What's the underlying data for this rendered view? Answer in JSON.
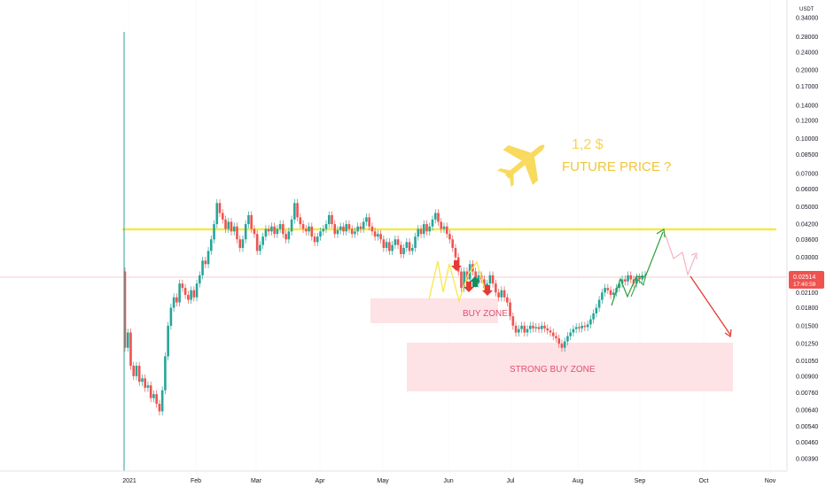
{
  "chart_data": {
    "type": "candlestick",
    "y_scale": "log",
    "currency_label": "USDT",
    "y_ticks": [
      "0.34000",
      "0.28000",
      "0.24000",
      "0.20000",
      "0.17000",
      "0.14000",
      "0.12000",
      "0.10000",
      "0.08500",
      "0.07000",
      "0.06000",
      "0.05000",
      "0.04200",
      "0.03600",
      "0.03000",
      "0.02100",
      "0.01800",
      "0.01500",
      "0.01250",
      "0.01050",
      "0.00900",
      "0.00760",
      "0.00640",
      "0.00540",
      "0.00460",
      "0.00390"
    ],
    "x_ticks": [
      "2021",
      "Feb",
      "Mar",
      "Apr",
      "May",
      "Jun",
      "Jul",
      "Aug",
      "Sep",
      "Oct",
      "Nov"
    ],
    "current_price": "0.02514",
    "countdown": "17:40:59",
    "resistance_level": 0.04,
    "ohlc_daily": [
      [
        0.026,
        0.012
      ],
      [
        0.012,
        0.014
      ],
      [
        0.014,
        0.01
      ],
      [
        0.01,
        0.009
      ],
      [
        0.009,
        0.01
      ],
      [
        0.01,
        0.0085
      ],
      [
        0.0085,
        0.0088
      ],
      [
        0.0088,
        0.008
      ],
      [
        0.008,
        0.0082
      ],
      [
        0.0082,
        0.0072
      ],
      [
        0.0072,
        0.0075
      ],
      [
        0.0075,
        0.0068
      ],
      [
        0.0068,
        0.0063
      ],
      [
        0.0063,
        0.0078
      ],
      [
        0.0078,
        0.011
      ],
      [
        0.011,
        0.015
      ],
      [
        0.015,
        0.018
      ],
      [
        0.018,
        0.02
      ],
      [
        0.02,
        0.019
      ],
      [
        0.019,
        0.023
      ],
      [
        0.023,
        0.022
      ],
      [
        0.022,
        0.0205
      ],
      [
        0.0205,
        0.0195
      ],
      [
        0.0195,
        0.0215
      ],
      [
        0.0215,
        0.02
      ],
      [
        0.02,
        0.023
      ],
      [
        0.023,
        0.025
      ],
      [
        0.025,
        0.029
      ],
      [
        0.029,
        0.028
      ],
      [
        0.028,
        0.032
      ],
      [
        0.032,
        0.036
      ],
      [
        0.036,
        0.042
      ],
      [
        0.042,
        0.052
      ],
      [
        0.052,
        0.047
      ],
      [
        0.047,
        0.044
      ],
      [
        0.044,
        0.04
      ],
      [
        0.04,
        0.043
      ],
      [
        0.043,
        0.039
      ],
      [
        0.039,
        0.041
      ],
      [
        0.041,
        0.036
      ],
      [
        0.036,
        0.033
      ],
      [
        0.033,
        0.036
      ],
      [
        0.036,
        0.042
      ],
      [
        0.042,
        0.046
      ],
      [
        0.046,
        0.04
      ],
      [
        0.04,
        0.038
      ],
      [
        0.038,
        0.032
      ],
      [
        0.032,
        0.034
      ],
      [
        0.034,
        0.037
      ],
      [
        0.037,
        0.04
      ],
      [
        0.04,
        0.039
      ],
      [
        0.039,
        0.041
      ],
      [
        0.041,
        0.038
      ],
      [
        0.038,
        0.04
      ],
      [
        0.04,
        0.042
      ],
      [
        0.042,
        0.038
      ],
      [
        0.038,
        0.036
      ],
      [
        0.036,
        0.039
      ],
      [
        0.039,
        0.044
      ],
      [
        0.044,
        0.052
      ],
      [
        0.052,
        0.045
      ],
      [
        0.045,
        0.042
      ],
      [
        0.042,
        0.04
      ],
      [
        0.04,
        0.039
      ],
      [
        0.039,
        0.041
      ],
      [
        0.041,
        0.037
      ],
      [
        0.037,
        0.035
      ],
      [
        0.035,
        0.037
      ],
      [
        0.037,
        0.039
      ],
      [
        0.039,
        0.04
      ],
      [
        0.04,
        0.042
      ],
      [
        0.042,
        0.046
      ],
      [
        0.046,
        0.042
      ],
      [
        0.042,
        0.038
      ],
      [
        0.038,
        0.0395
      ],
      [
        0.0395,
        0.041
      ],
      [
        0.041,
        0.039
      ],
      [
        0.039,
        0.042
      ],
      [
        0.042,
        0.04
      ],
      [
        0.04,
        0.038
      ],
      [
        0.038,
        0.039
      ],
      [
        0.039,
        0.041
      ],
      [
        0.041,
        0.04
      ],
      [
        0.04,
        0.043
      ],
      [
        0.043,
        0.045
      ],
      [
        0.045,
        0.041
      ],
      [
        0.041,
        0.039
      ],
      [
        0.039,
        0.037
      ],
      [
        0.037,
        0.038
      ],
      [
        0.038,
        0.036
      ],
      [
        0.036,
        0.033
      ],
      [
        0.033,
        0.035
      ],
      [
        0.035,
        0.032
      ],
      [
        0.032,
        0.034
      ],
      [
        0.034,
        0.036
      ],
      [
        0.036,
        0.034
      ],
      [
        0.034,
        0.031
      ],
      [
        0.031,
        0.033
      ],
      [
        0.033,
        0.035
      ],
      [
        0.035,
        0.032
      ],
      [
        0.032,
        0.033
      ],
      [
        0.033,
        0.037
      ],
      [
        0.037,
        0.04
      ],
      [
        0.04,
        0.038
      ],
      [
        0.038,
        0.042
      ],
      [
        0.042,
        0.039
      ],
      [
        0.039,
        0.041
      ],
      [
        0.041,
        0.044
      ],
      [
        0.044,
        0.047
      ],
      [
        0.047,
        0.043
      ],
      [
        0.043,
        0.04
      ],
      [
        0.04,
        0.041
      ],
      [
        0.041,
        0.038
      ],
      [
        0.038,
        0.036
      ],
      [
        0.036,
        0.033
      ],
      [
        0.033,
        0.03
      ],
      [
        0.03,
        0.026
      ],
      [
        0.026,
        0.022
      ],
      [
        0.022,
        0.026
      ],
      [
        0.026,
        0.024
      ],
      [
        0.024,
        0.028
      ],
      [
        0.028,
        0.026
      ],
      [
        0.026,
        0.023
      ],
      [
        0.023,
        0.025
      ],
      [
        0.025,
        0.024
      ],
      [
        0.024,
        0.022
      ],
      [
        0.022,
        0.023
      ],
      [
        0.023,
        0.025
      ],
      [
        0.025,
        0.023
      ],
      [
        0.023,
        0.021
      ],
      [
        0.021,
        0.02
      ],
      [
        0.02,
        0.0215
      ],
      [
        0.0215,
        0.02
      ],
      [
        0.02,
        0.019
      ],
      [
        0.019,
        0.0165
      ],
      [
        0.0165,
        0.015
      ],
      [
        0.015,
        0.014
      ],
      [
        0.014,
        0.0145
      ],
      [
        0.0145,
        0.015
      ],
      [
        0.015,
        0.014
      ],
      [
        0.014,
        0.0145
      ],
      [
        0.0145,
        0.015
      ],
      [
        0.015,
        0.0146
      ],
      [
        0.0146,
        0.0148
      ],
      [
        0.0148,
        0.0145
      ],
      [
        0.0145,
        0.015
      ],
      [
        0.015,
        0.0146
      ],
      [
        0.0146,
        0.0143
      ],
      [
        0.0143,
        0.014
      ],
      [
        0.014,
        0.0135
      ],
      [
        0.0135,
        0.0132
      ],
      [
        0.0132,
        0.0125
      ],
      [
        0.0125,
        0.012
      ],
      [
        0.012,
        0.0128
      ],
      [
        0.0128,
        0.0135
      ],
      [
        0.0135,
        0.014
      ],
      [
        0.014,
        0.0145
      ],
      [
        0.0145,
        0.0148
      ],
      [
        0.0148,
        0.0146
      ],
      [
        0.0146,
        0.015
      ],
      [
        0.015,
        0.0148
      ],
      [
        0.0148,
        0.0152
      ],
      [
        0.0152,
        0.016
      ],
      [
        0.016,
        0.017
      ],
      [
        0.017,
        0.018
      ],
      [
        0.018,
        0.0195
      ],
      [
        0.0195,
        0.021
      ],
      [
        0.021,
        0.022
      ],
      [
        0.022,
        0.0215
      ],
      [
        0.0215,
        0.0205
      ],
      [
        0.0205,
        0.021
      ],
      [
        0.021,
        0.022
      ],
      [
        0.022,
        0.023
      ],
      [
        0.023,
        0.024
      ],
      [
        0.024,
        0.0235
      ],
      [
        0.0235,
        0.025
      ],
      [
        0.025,
        0.024
      ],
      [
        0.024,
        0.023
      ],
      [
        0.023,
        0.0245
      ],
      [
        0.0245,
        0.024
      ],
      [
        0.024,
        0.025
      ],
      [
        0.025,
        0.0251
      ]
    ],
    "annotations": {
      "target_price": "1,2 $",
      "future_price": "FUTURE PRICE ?",
      "buy_zone": "BUY ZONE",
      "strong_buy_zone": "STRONG BUY ZONE",
      "plane_icon": "airplane-icon"
    },
    "colors": {
      "up": "#26a69a",
      "down": "#ef5350",
      "resistance": "#f5e84b",
      "annotation_yellow": "#f7d54a",
      "zone_fill": "#fde2e6",
      "zone_text": "#e0506e",
      "price_tag": "#ef5350",
      "arrow_green": "#2e9d3a",
      "arrow_red": "#e53935",
      "pattern_yellow": "#f5e84b"
    }
  }
}
